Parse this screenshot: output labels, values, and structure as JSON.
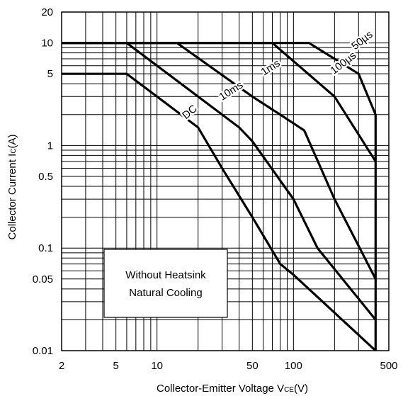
{
  "chart_data": {
    "type": "line",
    "title": "",
    "xlabel": "Collector-Emitter Voltage V",
    "xlabel_sub": "CE",
    "xlabel_unit": "(V)",
    "ylabel": "Collector Current I",
    "ylabel_sub": "C",
    "ylabel_unit": "(A)",
    "x_scale": "log",
    "y_scale": "log",
    "xlim": [
      2,
      500
    ],
    "ylim": [
      0.01,
      20
    ],
    "grid": true,
    "x_ticks": [
      {
        "value": 2,
        "label": "2"
      },
      {
        "value": 5,
        "label": "5"
      },
      {
        "value": 10,
        "label": "10"
      },
      {
        "value": 50,
        "label": "50"
      },
      {
        "value": 100,
        "label": "100"
      },
      {
        "value": 500,
        "label": "500"
      }
    ],
    "y_ticks": [
      {
        "value": 20,
        "label": "20"
      },
      {
        "value": 10,
        "label": "10"
      },
      {
        "value": 5,
        "label": "5"
      },
      {
        "value": 1,
        "label": "1"
      },
      {
        "value": 0.5,
        "label": "0.5"
      },
      {
        "value": 0.1,
        "label": "0.1"
      },
      {
        "value": 0.05,
        "label": "0.05"
      },
      {
        "value": 0.01,
        "label": "0.01"
      }
    ],
    "series": [
      {
        "name": "DC",
        "points": [
          [
            2,
            5
          ],
          [
            6,
            5
          ],
          [
            20,
            1.5
          ],
          [
            30,
            0.6
          ],
          [
            50,
            0.2
          ],
          [
            80,
            0.07
          ],
          [
            100,
            0.055
          ],
          [
            400,
            0.01
          ]
        ]
      },
      {
        "name": "10ms",
        "points": [
          [
            2,
            10
          ],
          [
            6,
            10
          ],
          [
            40,
            1.5
          ],
          [
            50,
            1.1
          ],
          [
            100,
            0.3
          ],
          [
            150,
            0.1
          ],
          [
            400,
            0.02
          ]
        ]
      },
      {
        "name": "1ms",
        "points": [
          [
            2,
            10
          ],
          [
            14,
            10
          ],
          [
            50,
            3
          ],
          [
            80,
            2
          ],
          [
            120,
            1.4
          ],
          [
            200,
            0.3
          ],
          [
            400,
            0.05
          ]
        ]
      },
      {
        "name": "100µs",
        "points": [
          [
            2,
            10
          ],
          [
            70,
            10
          ],
          [
            200,
            3
          ],
          [
            400,
            0.7
          ]
        ]
      },
      {
        "name": "50µs",
        "points": [
          [
            2,
            10
          ],
          [
            130,
            10
          ],
          [
            300,
            5
          ],
          [
            400,
            2
          ],
          [
            400,
            0.01
          ]
        ]
      }
    ],
    "annotations": [
      {
        "text": "DC",
        "x": 18,
        "y": 2.0,
        "rotate": -40
      },
      {
        "text": "10ms",
        "x": 36,
        "y": 3.2,
        "rotate": -33
      },
      {
        "text": "1ms",
        "x": 70,
        "y": 5.4,
        "rotate": -33
      },
      {
        "text": "100µs",
        "x": 240,
        "y": 6.0,
        "rotate": -38
      },
      {
        "text": "50µs",
        "x": 330,
        "y": 10.0,
        "rotate": -38
      }
    ],
    "note": {
      "lines": [
        "Without Heatsink",
        "Natural Cooling"
      ]
    }
  }
}
